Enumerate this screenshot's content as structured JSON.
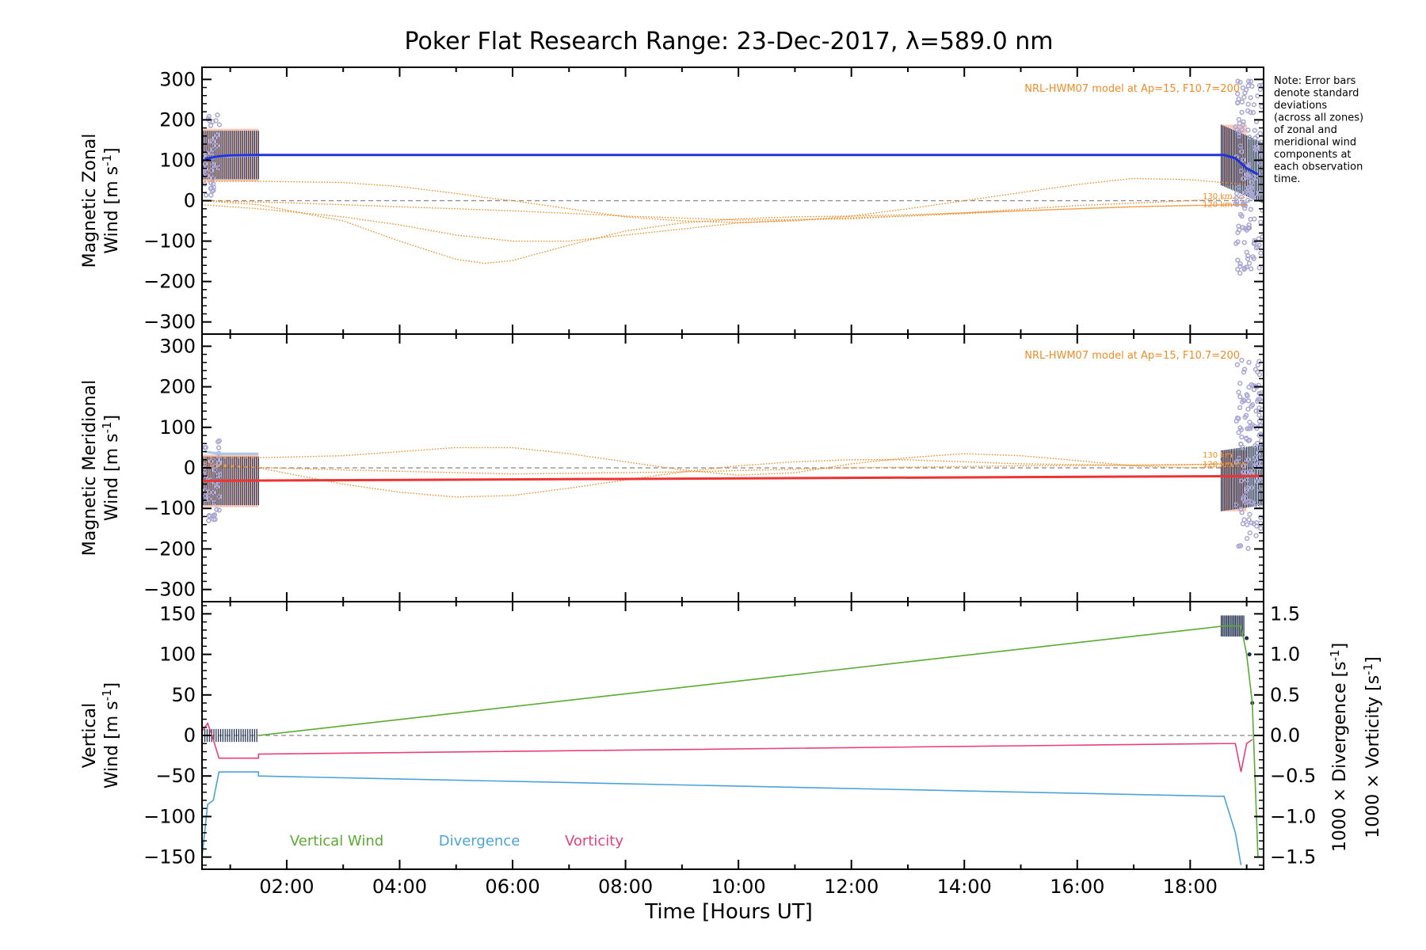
{
  "title": "Poker Flat Research Range: 23-Dec-2017, λ=589.0 nm",
  "note_lines": [
    "Note: Error bars",
    "denote standard",
    "deviations",
    "(across all zones)",
    "of zonal and",
    "meridional wind",
    "components at",
    "each observation",
    "time."
  ],
  "xlabel": "Time [Hours UT]",
  "xticks": [
    "02:00",
    "04:00",
    "06:00",
    "08:00",
    "10:00",
    "12:00",
    "14:00",
    "16:00",
    "18:00"
  ],
  "colors": {
    "zonal": "#2233dd",
    "meridional": "#ee3333",
    "model": "#f28c28",
    "vertical": "#5aaa32",
    "divergence": "#4ba3d6",
    "vorticity": "#e8407a",
    "error_bar": "#1a2a4a",
    "shade": "#f6b8a8",
    "light_blue": "#a8c8e8",
    "points": "#a9a6d4"
  },
  "chart_data": [
    {
      "type": "line",
      "ylabel_line1": "Magnetic Zonal",
      "ylabel_line2": "Wind [m s",
      "ylabel_sup": "-1",
      "ylabel_close": "]",
      "yticks": [
        "300",
        "200",
        "100",
        "0",
        "−100",
        "−200",
        "−300"
      ],
      "ylim": [
        -330,
        330
      ],
      "xlim": [
        0.5,
        19.3
      ],
      "model_label": "NRL-HWM07 model at Ap=15, F10.7=200",
      "km_labels": [
        "130 km",
        "120 km"
      ],
      "series": [
        {
          "x": [
            0.55,
            0.8,
            1.0,
            1.5,
            18.6,
            18.8,
            19.0,
            19.2
          ],
          "y": [
            103,
            110,
            112,
            113,
            113,
            105,
            80,
            65
          ]
        }
      ],
      "model_curves": [
        {
          "x": [
            0.5,
            1.5,
            3,
            4,
            5,
            5.5,
            6,
            7,
            8,
            9,
            10,
            11,
            12,
            13,
            14,
            15,
            16,
            17,
            18,
            19
          ],
          "y": [
            48,
            48,
            45,
            35,
            18,
            8,
            0,
            -20,
            -40,
            -50,
            -54,
            -50,
            -38,
            -20,
            0,
            20,
            40,
            55,
            52,
            40
          ]
        },
        {
          "x": [
            0.5,
            1.5,
            3,
            4,
            5,
            5.5,
            6,
            7,
            8,
            9,
            10,
            11,
            12,
            13,
            14,
            15,
            16,
            17,
            18,
            19
          ],
          "y": [
            0,
            -10,
            -50,
            -100,
            -145,
            -155,
            -148,
            -110,
            -75,
            -55,
            -45,
            -40,
            -38,
            -35,
            -30,
            -25,
            -20,
            -15,
            -12,
            -10
          ]
        },
        {
          "x": [
            0.5,
            1.5,
            3,
            4,
            5,
            6,
            7,
            8,
            9,
            10,
            11,
            12,
            13,
            14,
            15,
            16,
            17,
            18,
            19
          ],
          "y": [
            -10,
            -20,
            -40,
            -60,
            -85,
            -100,
            -100,
            -85,
            -70,
            -55,
            -48,
            -42,
            -38,
            -32,
            -25,
            -20,
            -15,
            -12,
            -10
          ]
        },
        {
          "x": [
            0.5,
            2,
            4,
            6,
            8,
            10,
            12,
            14,
            16,
            18,
            19
          ],
          "y": [
            0,
            -5,
            -15,
            -25,
            -38,
            -48,
            -45,
            -30,
            -12,
            0,
            8
          ]
        }
      ]
    },
    {
      "type": "line",
      "ylabel_line1": "Magnetic Meridional",
      "ylabel_line2": "Wind [m s",
      "ylabel_sup": "-1",
      "ylabel_close": "]",
      "yticks": [
        "300",
        "200",
        "100",
        "0",
        "−100",
        "−200",
        "−300"
      ],
      "ylim": [
        -330,
        330
      ],
      "xlim": [
        0.5,
        19.3
      ],
      "model_label": "NRL-HWM07 model at Ap=15, F10.7=200",
      "km_labels": [
        "130 km",
        "120 km"
      ],
      "series": [
        {
          "x": [
            0.5,
            19.3
          ],
          "y": [
            -32,
            -20
          ]
        }
      ],
      "model_curves": [
        {
          "x": [
            0.5,
            1.5,
            3,
            4,
            5,
            6,
            7,
            8,
            9,
            10,
            11,
            12,
            13,
            14,
            15,
            16,
            17,
            18,
            19
          ],
          "y": [
            25,
            25,
            30,
            40,
            50,
            50,
            35,
            15,
            -5,
            -18,
            -12,
            10,
            25,
            35,
            30,
            18,
            5,
            0,
            5
          ]
        },
        {
          "x": [
            0.5,
            1.5,
            3,
            4,
            5,
            6,
            7,
            8,
            9,
            10,
            11,
            12,
            13,
            14,
            15,
            16,
            17,
            18,
            19
          ],
          "y": [
            12,
            0,
            -40,
            -60,
            -72,
            -68,
            -50,
            -30,
            -10,
            5,
            15,
            20,
            20,
            15,
            10,
            8,
            6,
            8,
            12
          ]
        },
        {
          "x": [
            0.5,
            3,
            6,
            9,
            12,
            15,
            18,
            19
          ],
          "y": [
            5,
            -5,
            -15,
            -10,
            0,
            5,
            8,
            10
          ]
        }
      ]
    },
    {
      "type": "line",
      "ylabel_v1": "Vertical",
      "ylabel_v2": "Wind [m s",
      "ylabel_v_sup": "-1",
      "ylabel_v_close": "]",
      "ylabel_div": "1000 × Divergence [s",
      "ylabel_div_sup": "-1",
      "ylabel_div_close": "]",
      "ylabel_vor": "1000 × Vorticity [s",
      "ylabel_vor_sup": "-1",
      "ylabel_vor_close": "]",
      "yticks_left": [
        "150",
        "100",
        "50",
        "0",
        "−50",
        "−100",
        "−150"
      ],
      "yticks_right": [
        "1.5",
        "1.0",
        "0.5",
        "0.0",
        "−0.5",
        "−1.0",
        "−1.5"
      ],
      "ylim": [
        -165,
        165
      ],
      "ylim_right": [
        -1.65,
        1.65
      ],
      "xlim": [
        0.5,
        19.3
      ],
      "legend": [
        "Vertical Wind",
        "Divergence",
        "Vorticity"
      ],
      "series": [
        {
          "name": "Vertical Wind",
          "x": [
            1.5,
            18.6,
            18.9,
            19.0,
            19.1,
            19.2
          ],
          "y": [
            0,
            135,
            135,
            100,
            40,
            -150
          ]
        },
        {
          "name": "Divergence",
          "x": [
            0.5,
            0.6,
            0.7,
            0.8,
            1.0,
            1.5,
            1.5,
            18.5,
            18.6,
            18.8,
            18.9
          ],
          "y": [
            -1.5,
            -0.85,
            -0.8,
            -0.45,
            -0.45,
            -0.45,
            -0.5,
            -0.75,
            -0.75,
            -1.2,
            -1.6
          ]
        },
        {
          "name": "Vorticity",
          "x": [
            0.5,
            0.6,
            0.7,
            0.8,
            1.0,
            1.5,
            1.5,
            18.6,
            18.8,
            18.9,
            19.0,
            19.1
          ],
          "y": [
            0.05,
            0.15,
            -0.05,
            -0.28,
            -0.28,
            -0.28,
            -0.23,
            -0.1,
            -0.1,
            -0.45,
            -0.1,
            -0.05
          ]
        }
      ]
    }
  ]
}
